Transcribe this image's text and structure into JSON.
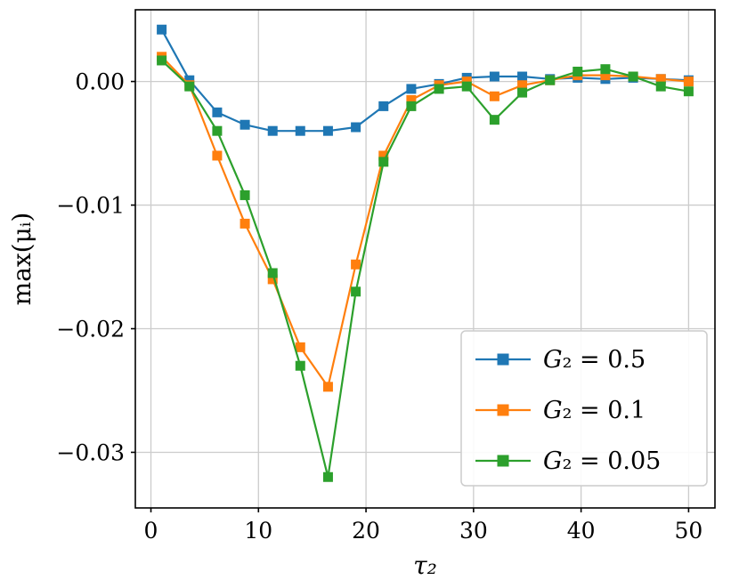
{
  "figure": {
    "background": "#ffffff",
    "spine_color": "#000000",
    "grid_color": "#cccccc",
    "tick_label_size": 25,
    "axis_label_size": 28,
    "legend_font_size": 27
  },
  "chart_data": {
    "type": "line",
    "title": "",
    "xlabel": "τ₂",
    "ylabel": "max(μᵢ)",
    "xlim": [
      -1.45,
      52.45
    ],
    "ylim": [
      -0.0345,
      0.0058
    ],
    "xticks": [
      0,
      10,
      20,
      30,
      40,
      50
    ],
    "xtick_labels": [
      "0",
      "10",
      "20",
      "30",
      "40",
      "50"
    ],
    "yticks": [
      0.0,
      -0.01,
      -0.02,
      -0.03
    ],
    "ytick_labels": [
      "0.00",
      "−0.01",
      "−0.02",
      "−0.03"
    ],
    "grid": true,
    "legend_position": "lower right",
    "x": [
      1.0,
      3.58,
      6.16,
      8.74,
      11.32,
      13.89,
      16.47,
      19.05,
      21.63,
      24.21,
      26.79,
      29.37,
      31.95,
      34.53,
      37.11,
      39.68,
      42.26,
      44.84,
      47.42,
      50.0
    ],
    "series": [
      {
        "name": "G₂ = 0.5",
        "color": "#1f77b4",
        "marker": "square",
        "values": [
          0.0042,
          0.0001,
          -0.0025,
          -0.0035,
          -0.004,
          -0.004,
          -0.004,
          -0.0037,
          -0.002,
          -0.0006,
          -0.0002,
          0.0003,
          0.0004,
          0.0004,
          0.0002,
          0.0003,
          0.0002,
          0.0003,
          0.0002,
          0.0001
        ]
      },
      {
        "name": "G₂ = 0.1",
        "color": "#ff7f0e",
        "marker": "square",
        "values": [
          0.002,
          -0.0003,
          -0.006,
          -0.0115,
          -0.016,
          -0.0215,
          -0.0247,
          -0.0148,
          -0.006,
          -0.0015,
          -0.0003,
          0.0,
          -0.0012,
          -0.0003,
          0.0001,
          0.0005,
          0.0005,
          0.0004,
          0.0002,
          0.0
        ]
      },
      {
        "name": "G₂ = 0.05",
        "color": "#2ca02c",
        "marker": "square",
        "values": [
          0.0017,
          -0.0004,
          -0.004,
          -0.0092,
          -0.0155,
          -0.023,
          -0.032,
          -0.017,
          -0.0065,
          -0.002,
          -0.0006,
          -0.0004,
          -0.0031,
          -0.0009,
          0.0001,
          0.0008,
          0.001,
          0.0004,
          -0.0004,
          -0.0008
        ]
      }
    ]
  }
}
